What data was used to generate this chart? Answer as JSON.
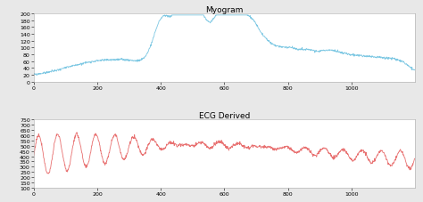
{
  "title1": "Myogram",
  "title2": "ECG Derived",
  "line_color1": "#7ec8e3",
  "line_color2": "#e87070",
  "background_color": "#e8e8e8",
  "axes_bg": "#ffffff",
  "ylim1": [
    0,
    200
  ],
  "ylim2": [
    100,
    750
  ],
  "yticks1_step": 20,
  "yticks2_step": 50,
  "n_points": 1200,
  "linewidth": 0.6,
  "title_fontsize": 6.5,
  "tick_labelsize": 4.5
}
